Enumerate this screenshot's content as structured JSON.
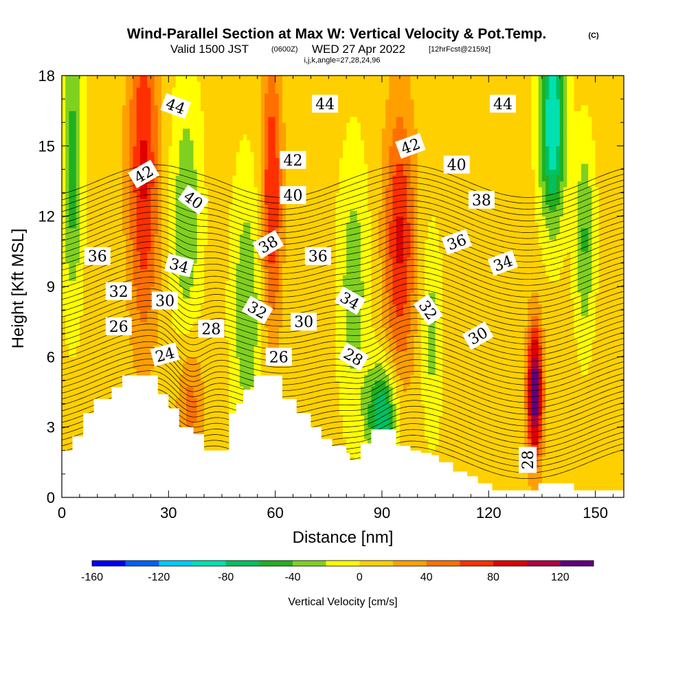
{
  "chart_data": {
    "type": "heatmap",
    "title": "Wind-Parallel Section at Max W: Vertical Velocity & Pot.Temp.",
    "title_mark": "(C)",
    "subtitle_main": "Valid 1500 JST",
    "subtitle_utc": "(0600Z)",
    "subtitle_date": "WED 27 Apr 2022",
    "subtitle_fcst": "[12hrFcst@2159z]",
    "subtitle_indices": "i,j,k,angle=27,28,24,96",
    "xlabel": "Distance [nm]",
    "ylabel": "Height [Kft MSL]",
    "xlim": [
      0,
      158
    ],
    "ylim": [
      0,
      18
    ],
    "xticks": [
      0,
      30,
      60,
      90,
      120,
      150
    ],
    "yticks": [
      0,
      3,
      6,
      9,
      12,
      15,
      18
    ],
    "colorbar": {
      "label": "Vertical Velocity [cm/s]",
      "min": -160,
      "max": 140,
      "step": 20,
      "tick_values": [
        -160,
        -120,
        -80,
        -40,
        0,
        40,
        80,
        120
      ],
      "tick_labels": [
        "-160",
        "-120",
        "-80",
        "-40",
        "0",
        "40",
        "80",
        "120"
      ],
      "colors": [
        "#0000ff",
        "#0060ff",
        "#00c8ff",
        "#00e0b0",
        "#00c060",
        "#20b020",
        "#80d020",
        "#ffff00",
        "#ffd000",
        "#ffa000",
        "#ff7000",
        "#ff3000",
        "#e00000",
        "#b00040",
        "#600080"
      ]
    },
    "velocity_features": [
      {
        "type": "updraft",
        "x": 23,
        "y": 14,
        "w": 75,
        "sx": 3,
        "sy": 5
      },
      {
        "type": "updraft",
        "x": 36,
        "y": 4,
        "w": 45,
        "sx": 2.5,
        "sy": 2
      },
      {
        "type": "updraft",
        "x": 59,
        "y": 13,
        "w": 75,
        "sx": 2,
        "sy": 4
      },
      {
        "type": "updraft",
        "x": 95,
        "y": 11,
        "w": 75,
        "sx": 3,
        "sy": 4
      },
      {
        "type": "updraft",
        "x": 133,
        "y": 4.5,
        "w": 135,
        "sx": 1.5,
        "sy": 2
      },
      {
        "type": "downdraft",
        "x": 3,
        "y": 14,
        "w": -60,
        "sx": 2,
        "sy": 4
      },
      {
        "type": "downdraft",
        "x": 35,
        "y": 12,
        "w": -45,
        "sx": 3,
        "sy": 4
      },
      {
        "type": "downdraft",
        "x": 52,
        "y": 8,
        "w": -45,
        "sx": 3,
        "sy": 4
      },
      {
        "type": "downdraft",
        "x": 82,
        "y": 9,
        "w": -40,
        "sx": 3,
        "sy": 4
      },
      {
        "type": "downdraft",
        "x": 90,
        "y": 3.5,
        "w": -90,
        "sx": 3,
        "sy": 1.5
      },
      {
        "type": "downdraft",
        "x": 104,
        "y": 7,
        "w": -35,
        "sx": 2,
        "sy": 3
      },
      {
        "type": "downdraft",
        "x": 138,
        "y": 16,
        "w": -110,
        "sx": 2.5,
        "sy": 3
      },
      {
        "type": "downdraft",
        "x": 147,
        "y": 11,
        "w": -50,
        "sx": 2,
        "sy": 3
      }
    ],
    "theta_contour_labels": [
      {
        "text": "44",
        "x": 32,
        "y": 16.7,
        "rot": 20
      },
      {
        "text": "44",
        "x": 74,
        "y": 16.8,
        "rot": 0
      },
      {
        "text": "44",
        "x": 124,
        "y": 16.8,
        "rot": 0
      },
      {
        "text": "42",
        "x": 23,
        "y": 13.8,
        "rot": -30
      },
      {
        "text": "42",
        "x": 65,
        "y": 14.4,
        "rot": 0
      },
      {
        "text": "42",
        "x": 98,
        "y": 15.0,
        "rot": -20
      },
      {
        "text": "40",
        "x": 37,
        "y": 12.7,
        "rot": 35
      },
      {
        "text": "40",
        "x": 65,
        "y": 12.9,
        "rot": 0
      },
      {
        "text": "40",
        "x": 111,
        "y": 14.2,
        "rot": 0
      },
      {
        "text": "38",
        "x": 58,
        "y": 10.8,
        "rot": -30
      },
      {
        "text": "38",
        "x": 118,
        "y": 12.7,
        "rot": 0
      },
      {
        "text": "36",
        "x": 10,
        "y": 10.3,
        "rot": 0
      },
      {
        "text": "36",
        "x": 72,
        "y": 10.3,
        "rot": 0
      },
      {
        "text": "36",
        "x": 111,
        "y": 10.9,
        "rot": -20
      },
      {
        "text": "34",
        "x": 33,
        "y": 9.9,
        "rot": 15
      },
      {
        "text": "34",
        "x": 81,
        "y": 8.4,
        "rot": 30
      },
      {
        "text": "34",
        "x": 124,
        "y": 10.0,
        "rot": -20
      },
      {
        "text": "32",
        "x": 16,
        "y": 8.8,
        "rot": 0
      },
      {
        "text": "32",
        "x": 55,
        "y": 8.0,
        "rot": 30
      },
      {
        "text": "32",
        "x": 103,
        "y": 8.0,
        "rot": 55
      },
      {
        "text": "30",
        "x": 29,
        "y": 8.4,
        "rot": 0
      },
      {
        "text": "30",
        "x": 68,
        "y": 7.5,
        "rot": 0
      },
      {
        "text": "30",
        "x": 117,
        "y": 6.9,
        "rot": -30
      },
      {
        "text": "28",
        "x": 42,
        "y": 7.2,
        "rot": 0
      },
      {
        "text": "28",
        "x": 82,
        "y": 6.0,
        "rot": 30
      },
      {
        "text": "28",
        "x": 131,
        "y": 1.6,
        "rot": -90
      },
      {
        "text": "26",
        "x": 16,
        "y": 7.3,
        "rot": 0
      },
      {
        "text": "26",
        "x": 61,
        "y": 6.0,
        "rot": 0
      },
      {
        "text": "24",
        "x": 29,
        "y": 6.1,
        "rot": -15
      }
    ],
    "terrain": [
      [
        0,
        2
      ],
      [
        3,
        2.6
      ],
      [
        6,
        3.6
      ],
      [
        9,
        4.2
      ],
      [
        14,
        4.7
      ],
      [
        17,
        5.2
      ],
      [
        23,
        5.2
      ],
      [
        27,
        4.4
      ],
      [
        30,
        3.8
      ],
      [
        33,
        3
      ],
      [
        37,
        2.7
      ],
      [
        40,
        2
      ],
      [
        45,
        2
      ],
      [
        47,
        3.6
      ],
      [
        49,
        4
      ],
      [
        51,
        4.6
      ],
      [
        54,
        5.2
      ],
      [
        60,
        5.2
      ],
      [
        62,
        4.2
      ],
      [
        66,
        3.6
      ],
      [
        70,
        3
      ],
      [
        73,
        2.5
      ],
      [
        76,
        2.2
      ],
      [
        80,
        1.9
      ],
      [
        81,
        1.6
      ],
      [
        84,
        2.3
      ],
      [
        87,
        2.9
      ],
      [
        92,
        2.9
      ],
      [
        94,
        2.2
      ],
      [
        98,
        2
      ],
      [
        101,
        1.9
      ],
      [
        104,
        1.8
      ],
      [
        106,
        1.5
      ],
      [
        110,
        1.1
      ],
      [
        114,
        0.9
      ],
      [
        117,
        0.6
      ],
      [
        121,
        0.3
      ],
      [
        132,
        0.3
      ],
      [
        134,
        0.6
      ],
      [
        142,
        0.6
      ],
      [
        144,
        0.3
      ],
      [
        158,
        0.3
      ]
    ]
  }
}
